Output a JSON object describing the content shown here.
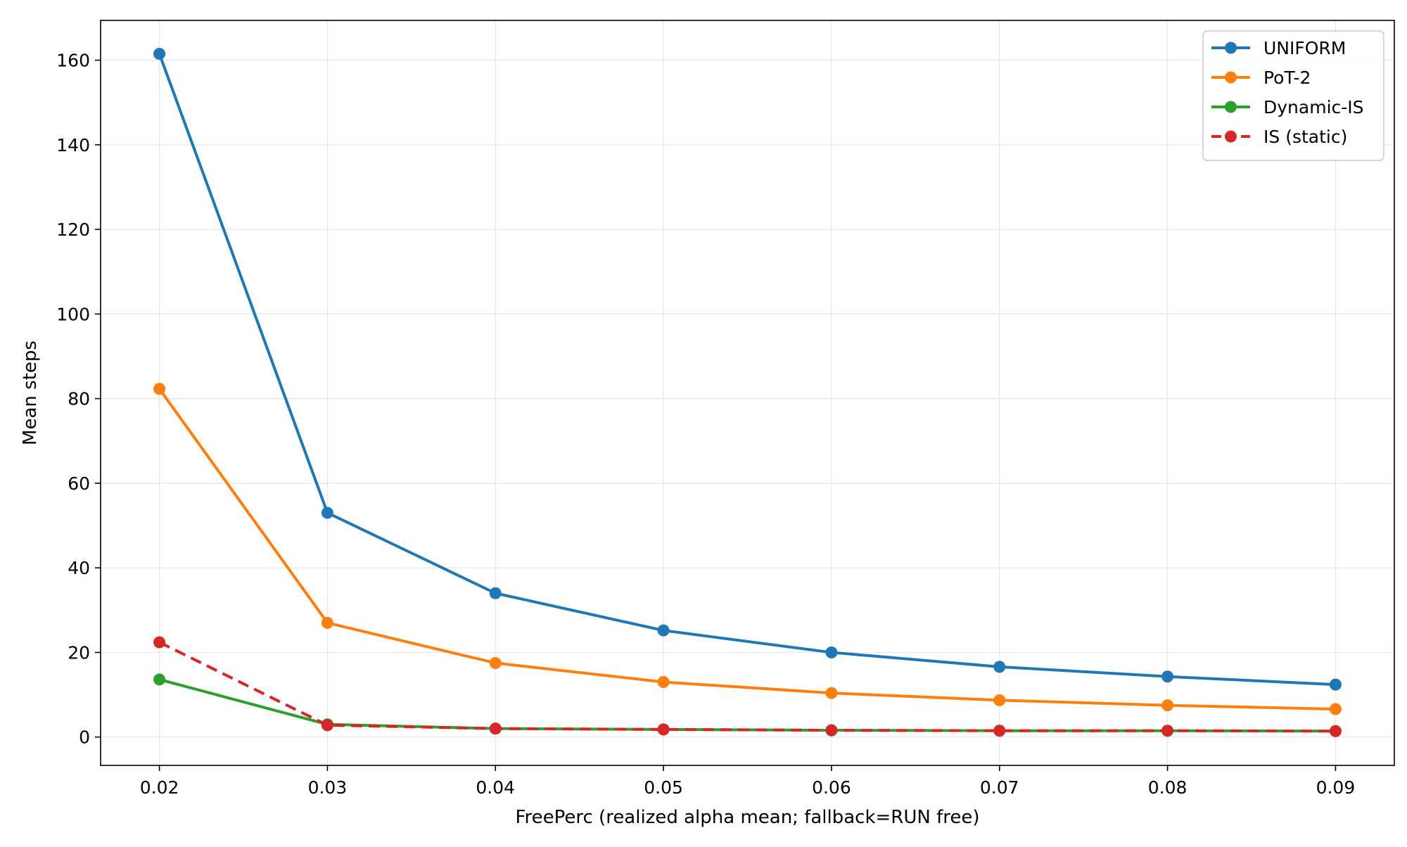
{
  "chart_data": {
    "type": "line",
    "title": "",
    "xlabel": "FreePerc (realized alpha mean; fallback=RUN free)",
    "ylabel": "Mean steps",
    "x": [
      0.02,
      0.03,
      0.04,
      0.05,
      0.06,
      0.07,
      0.08,
      0.09
    ],
    "xticks": [
      "0.02",
      "0.03",
      "0.04",
      "0.05",
      "0.06",
      "0.07",
      "0.08",
      "0.09"
    ],
    "yticks": [
      "0",
      "20",
      "40",
      "60",
      "80",
      "100",
      "120",
      "140",
      "160"
    ],
    "xlim": [
      0.0165,
      0.0935
    ],
    "ylim": [
      -6.7,
      169.4
    ],
    "grid": true,
    "legend_position": "top-right",
    "series": [
      {
        "name": "UNIFORM",
        "color": "#1f77b4",
        "style": "solid",
        "values": [
          161.5,
          53.0,
          34.0,
          25.2,
          20.0,
          16.6,
          14.3,
          12.4
        ]
      },
      {
        "name": "PoT-2",
        "color": "#ff7f0e",
        "style": "solid",
        "values": [
          82.3,
          27.0,
          17.5,
          13.0,
          10.4,
          8.7,
          7.5,
          6.6
        ]
      },
      {
        "name": "Dynamic-IS",
        "color": "#2ca02c",
        "style": "solid",
        "values": [
          13.6,
          3.0,
          2.0,
          1.8,
          1.6,
          1.5,
          1.5,
          1.4
        ]
      },
      {
        "name": "IS (static)",
        "color": "#d62728",
        "style": "dashed",
        "values": [
          22.4,
          2.8,
          2.0,
          1.8,
          1.6,
          1.5,
          1.5,
          1.4
        ]
      }
    ]
  }
}
